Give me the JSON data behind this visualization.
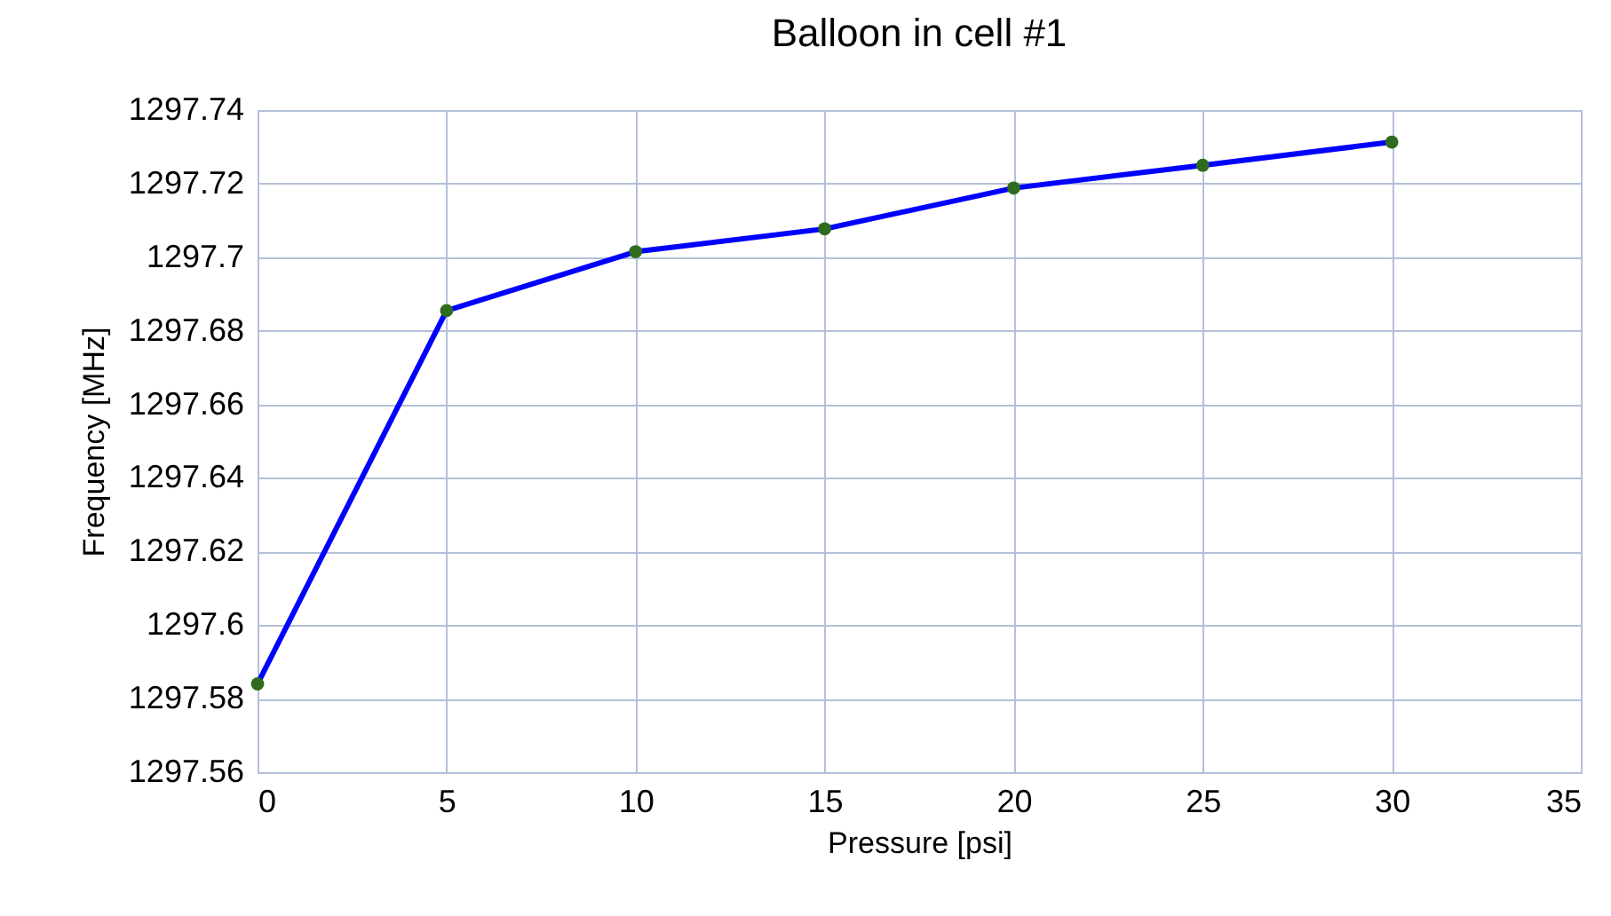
{
  "chart_data": {
    "type": "line",
    "title": "Balloon in cell #1",
    "xlabel": "Pressure [psi]",
    "ylabel": "Frequency [MHz]",
    "x": [
      0,
      5,
      10,
      15,
      20,
      25,
      30
    ],
    "series": [
      {
        "color": "#0000ff",
        "values": [
          1297.584,
          1297.6855,
          1297.7015,
          1297.7077,
          1297.7188,
          1297.725,
          1297.7313
        ]
      }
    ],
    "xlim": [
      0,
      35
    ],
    "xticks": [
      0,
      5,
      10,
      15,
      20,
      25,
      30,
      35
    ],
    "ylim": [
      1297.56,
      1297.74
    ],
    "yticks": [
      1297.56,
      1297.58,
      1297.6,
      1297.62,
      1297.64,
      1297.66,
      1297.68,
      1297.7,
      1297.72,
      1297.74
    ],
    "grid": true,
    "marker": "circle",
    "line_style": "solid"
  }
}
